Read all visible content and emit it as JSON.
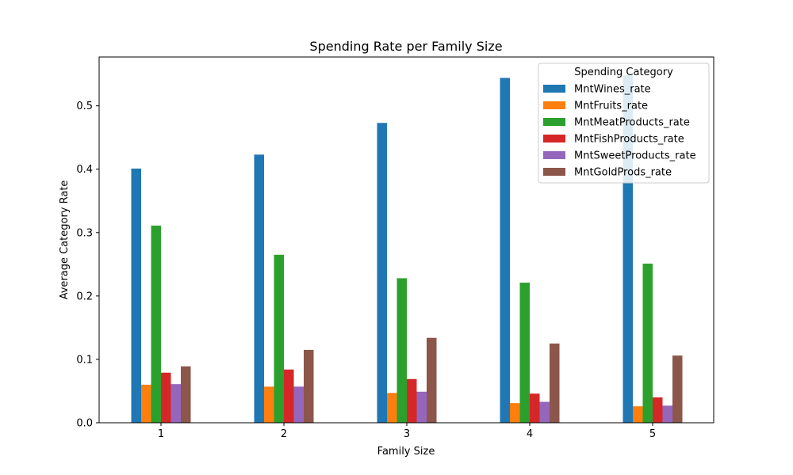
{
  "chart_data": {
    "type": "bar",
    "title": "Spending Rate per Family Size",
    "xlabel": "Family Size",
    "ylabel": "Average Category Rate",
    "categories": [
      "1",
      "2",
      "3",
      "4",
      "5"
    ],
    "ylim": [
      0,
      0.577
    ],
    "yticks": [
      0.0,
      0.1,
      0.2,
      0.3,
      0.4,
      0.5
    ],
    "ytick_labels": [
      "0.0",
      "0.1",
      "0.2",
      "0.3",
      "0.4",
      "0.5"
    ],
    "grid": false,
    "legend": {
      "title": "Spending Category",
      "placement": "top-right"
    },
    "series": [
      {
        "name": "MntWines_rate",
        "color": "#1f77b4",
        "values": [
          0.401,
          0.423,
          0.473,
          0.544,
          0.548
        ]
      },
      {
        "name": "MntFruits_rate",
        "color": "#ff7f0e",
        "values": [
          0.06,
          0.057,
          0.047,
          0.031,
          0.026
        ]
      },
      {
        "name": "MntMeatProducts_rate",
        "color": "#2ca02c",
        "values": [
          0.311,
          0.265,
          0.228,
          0.221,
          0.251
        ]
      },
      {
        "name": "MntFishProducts_rate",
        "color": "#d62728",
        "values": [
          0.079,
          0.084,
          0.069,
          0.046,
          0.04
        ]
      },
      {
        "name": "MntSweetProducts_rate",
        "color": "#9467bd",
        "values": [
          0.061,
          0.057,
          0.049,
          0.033,
          0.027
        ]
      },
      {
        "name": "MntGoldProds_rate",
        "color": "#8c564b",
        "values": [
          0.089,
          0.115,
          0.134,
          0.125,
          0.106
        ]
      }
    ]
  }
}
